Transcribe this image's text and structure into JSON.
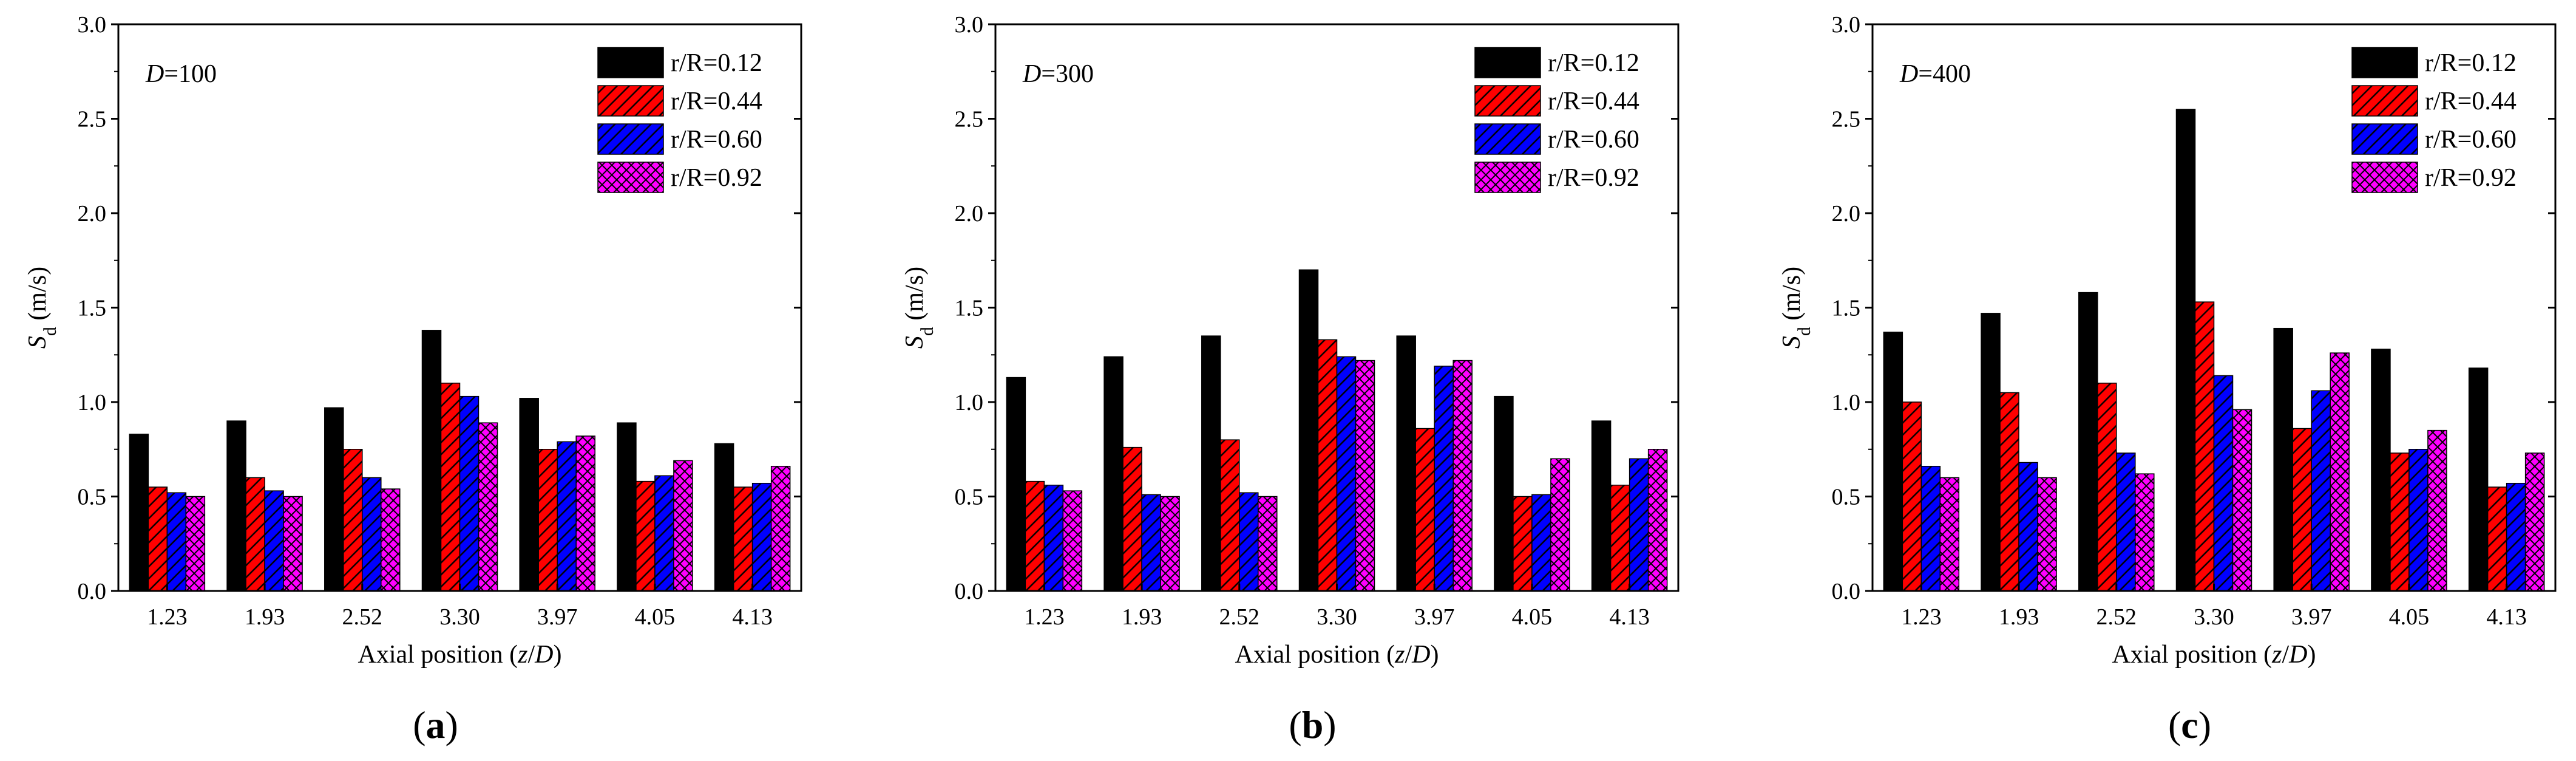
{
  "figure": {
    "legend_entries": [
      "r/R=0.12",
      "r/R=0.44",
      "r/R=0.60",
      "r/R=0.92"
    ]
  },
  "series_styles": [
    {
      "name": "r/R=0.12",
      "fill": "#000000",
      "pattern": "solid"
    },
    {
      "name": "r/R=0.44",
      "fill": "#ff0000",
      "pattern": "diagonal"
    },
    {
      "name": "r/R=0.60",
      "fill": "#0000ff",
      "pattern": "diagonal"
    },
    {
      "name": "r/R=0.92",
      "fill": "#ff00ff",
      "pattern": "crosshatch"
    }
  ],
  "chart_data": [
    {
      "type": "bar",
      "panel": "a",
      "caption": {
        "open": "(",
        "letter": "a",
        "close": ")"
      },
      "annotation": {
        "var": "D",
        "value": "=100"
      },
      "xlabel": {
        "prefix": "Axial position (",
        "var1": "z",
        "slash": "/",
        "var2": "D",
        "suffix": ")"
      },
      "ylabel": {
        "var": "S",
        "sub": "d",
        "unit": " (m/s)"
      },
      "ylim": [
        0,
        3.0
      ],
      "yticks": [
        "0.0",
        "0.5",
        "1.0",
        "1.5",
        "2.0",
        "2.5",
        "3.0"
      ],
      "categories": [
        "1.23",
        "1.93",
        "2.52",
        "3.30",
        "3.97",
        "4.05",
        "4.13"
      ],
      "legend_position": "top-right",
      "series": [
        {
          "name": "r/R=0.12",
          "values": [
            0.83,
            0.9,
            0.97,
            1.38,
            1.02,
            0.89,
            0.78
          ]
        },
        {
          "name": "r/R=0.44",
          "values": [
            0.55,
            0.6,
            0.75,
            1.1,
            0.75,
            0.58,
            0.55
          ]
        },
        {
          "name": "r/R=0.60",
          "values": [
            0.52,
            0.53,
            0.6,
            1.03,
            0.79,
            0.61,
            0.57
          ]
        },
        {
          "name": "r/R=0.92",
          "values": [
            0.5,
            0.5,
            0.54,
            0.89,
            0.82,
            0.69,
            0.66
          ]
        }
      ]
    },
    {
      "type": "bar",
      "panel": "b",
      "caption": {
        "open": "(",
        "letter": "b",
        "close": ")"
      },
      "annotation": {
        "var": "D",
        "value": "=300"
      },
      "xlabel": {
        "prefix": "Axial position (",
        "var1": "z",
        "slash": "/",
        "var2": "D",
        "suffix": ")"
      },
      "ylabel": {
        "var": "S",
        "sub": "d",
        "unit": " (m/s)"
      },
      "ylim": [
        0,
        3.0
      ],
      "yticks": [
        "0.0",
        "0.5",
        "1.0",
        "1.5",
        "2.0",
        "2.5",
        "3.0"
      ],
      "categories": [
        "1.23",
        "1.93",
        "2.52",
        "3.30",
        "3.97",
        "4.05",
        "4.13"
      ],
      "legend_position": "top-right",
      "series": [
        {
          "name": "r/R=0.12",
          "values": [
            1.13,
            1.24,
            1.35,
            1.7,
            1.35,
            1.03,
            0.9
          ]
        },
        {
          "name": "r/R=0.44",
          "values": [
            0.58,
            0.76,
            0.8,
            1.33,
            0.86,
            0.5,
            0.56
          ]
        },
        {
          "name": "r/R=0.60",
          "values": [
            0.56,
            0.51,
            0.52,
            1.24,
            1.19,
            0.51,
            0.7
          ]
        },
        {
          "name": "r/R=0.92",
          "values": [
            0.53,
            0.5,
            0.5,
            1.22,
            1.22,
            0.7,
            0.75
          ]
        }
      ]
    },
    {
      "type": "bar",
      "panel": "c",
      "caption": {
        "open": "(",
        "letter": "c",
        "close": ")"
      },
      "annotation": {
        "var": "D",
        "value": "=400"
      },
      "xlabel": {
        "prefix": "Axial position (",
        "var1": "z",
        "slash": "/",
        "var2": "D",
        "suffix": ")"
      },
      "ylabel": {
        "var": "S",
        "sub": "d",
        "unit": " (m/s)"
      },
      "ylim": [
        0,
        3.0
      ],
      "yticks": [
        "0.0",
        "0.5",
        "1.0",
        "1.5",
        "2.0",
        "2.5",
        "3.0"
      ],
      "categories": [
        "1.23",
        "1.93",
        "2.52",
        "3.30",
        "3.97",
        "4.05",
        "4.13"
      ],
      "legend_position": "top-right",
      "series": [
        {
          "name": "r/R=0.12",
          "values": [
            1.37,
            1.47,
            1.58,
            2.55,
            1.39,
            1.28,
            1.18
          ]
        },
        {
          "name": "r/R=0.44",
          "values": [
            1.0,
            1.05,
            1.1,
            1.53,
            0.86,
            0.73,
            0.55
          ]
        },
        {
          "name": "r/R=0.60",
          "values": [
            0.66,
            0.68,
            0.73,
            1.14,
            1.06,
            0.75,
            0.57
          ]
        },
        {
          "name": "r/R=0.92",
          "values": [
            0.6,
            0.6,
            0.62,
            0.96,
            1.26,
            0.85,
            0.73
          ]
        }
      ]
    }
  ]
}
